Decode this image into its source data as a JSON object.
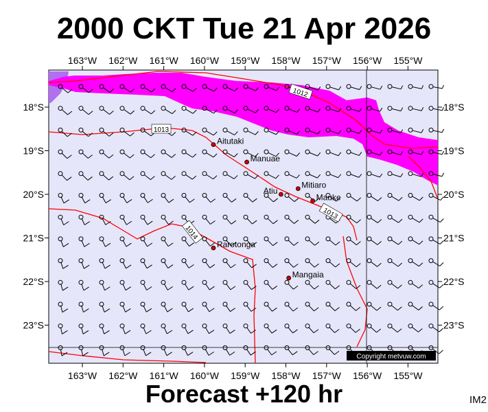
{
  "title": "2000 CKT Tue 21 Apr 2026",
  "subtitle": "Forecast +120 hr",
  "corner_label": "IM2",
  "copyright": "Copyright metvuw.com",
  "lon_labels": [
    "163°W",
    "162°W",
    "161°W",
    "160°W",
    "159°W",
    "158°W",
    "157°W",
    "156°W",
    "155°W"
  ],
  "lat_labels": [
    "18°S",
    "19°S",
    "20°S",
    "21°S",
    "22°S",
    "23°S"
  ],
  "isobar_labels": [
    "1012",
    "1013",
    "1013",
    "1014"
  ],
  "places": [
    {
      "name": "Aitutaki",
      "lon": -159.78,
      "lat": -18.86
    },
    {
      "name": "Manuae",
      "lon": -158.96,
      "lat": -19.26
    },
    {
      "name": "Mitiaro",
      "lon": -157.7,
      "lat": -19.87
    },
    {
      "name": "Atiu",
      "lon": -158.12,
      "lat": -20.0
    },
    {
      "name": "Mauke",
      "lon": -157.34,
      "lat": -20.15
    },
    {
      "name": "Rarotonga",
      "lon": -159.78,
      "lat": -21.23
    },
    {
      "name": "Mangaia",
      "lon": -157.93,
      "lat": -21.92
    }
  ],
  "colors": {
    "ocean": "#e6e6fa",
    "precip": "#ff00ff",
    "precip_light": "#b070f0",
    "isobar": "#ff0000",
    "place_dot": "#cc0000"
  }
}
